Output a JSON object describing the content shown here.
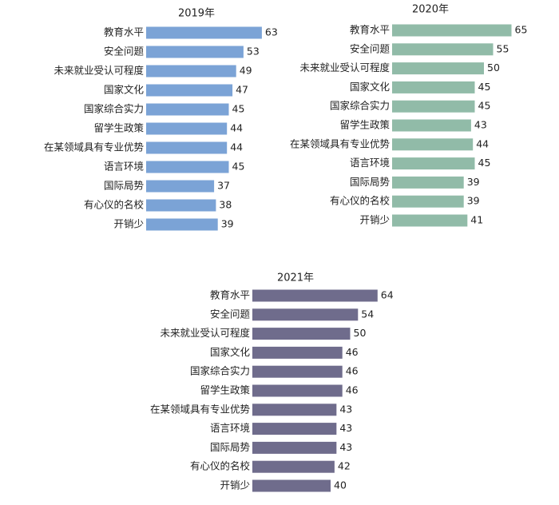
{
  "chart_data": [
    {
      "type": "bar",
      "orientation": "horizontal",
      "title": "2019年",
      "categories": [
        "教育水平",
        "安全问题",
        "未来就业受认可程度",
        "国家文化",
        "国家综合实力",
        "留学生政策",
        "在某领域具有专业优势",
        "语言环境",
        "国际局势",
        "有心仪的名校",
        "开销少"
      ],
      "values": [
        63,
        53,
        49,
        47,
        45,
        44,
        44,
        45,
        37,
        38,
        39
      ],
      "color": "#7BA3D6",
      "grid": false,
      "legend": "none"
    },
    {
      "type": "bar",
      "orientation": "horizontal",
      "title": "2020年",
      "categories": [
        "教育水平",
        "安全问题",
        "未来就业受认可程度",
        "国家文化",
        "国家综合实力",
        "留学生政策",
        "在某领域具有专业优势",
        "语言环境",
        "国际局势",
        "有心仪的名校",
        "开销少"
      ],
      "values": [
        65,
        55,
        50,
        45,
        45,
        43,
        44,
        45,
        39,
        39,
        41
      ],
      "color": "#91BBA8",
      "grid": false,
      "legend": "none"
    },
    {
      "type": "bar",
      "orientation": "horizontal",
      "title": "2021年",
      "categories": [
        "教育水平",
        "安全问题",
        "未来就业受认可程度",
        "国家文化",
        "国家综合实力",
        "留学生政策",
        "在某领域具有专业优势",
        "语言环境",
        "国际局势",
        "有心仪的名校",
        "开销少"
      ],
      "values": [
        64,
        54,
        50,
        46,
        46,
        46,
        43,
        43,
        43,
        42,
        40
      ],
      "color": "#6F6C8C",
      "grid": false,
      "legend": "none"
    }
  ]
}
